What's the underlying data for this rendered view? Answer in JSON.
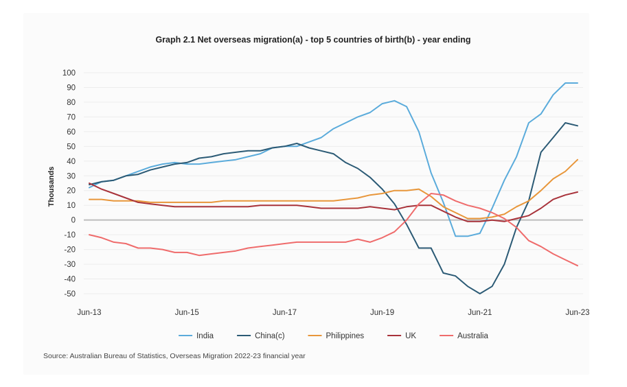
{
  "chart_data": {
    "type": "line",
    "title": "Graph 2.1 Net overseas migration(a) - top 5 countries of birth(b) - year ending",
    "ylabel": "Thousands",
    "xlabel": "",
    "ylim": [
      -50,
      100
    ],
    "yticks": [
      -50,
      -40,
      -30,
      -20,
      -10,
      0,
      10,
      20,
      30,
      40,
      50,
      60,
      70,
      80,
      90,
      100
    ],
    "x": [
      "Jun-13",
      "Sep-13",
      "Dec-13",
      "Mar-14",
      "Jun-14",
      "Sep-14",
      "Dec-14",
      "Mar-15",
      "Jun-15",
      "Sep-15",
      "Dec-15",
      "Mar-16",
      "Jun-16",
      "Sep-16",
      "Dec-16",
      "Mar-17",
      "Jun-17",
      "Sep-17",
      "Dec-17",
      "Mar-18",
      "Jun-18",
      "Sep-18",
      "Dec-18",
      "Mar-19",
      "Jun-19",
      "Sep-19",
      "Dec-19",
      "Mar-20",
      "Jun-20",
      "Sep-20",
      "Dec-20",
      "Mar-21",
      "Jun-21",
      "Sep-21",
      "Dec-21",
      "Mar-22",
      "Jun-22",
      "Sep-22",
      "Dec-22",
      "Mar-23",
      "Jun-23"
    ],
    "xtick_labels": [
      "Jun-13",
      "Jun-15",
      "Jun-17",
      "Jun-19",
      "Jun-21",
      "Jun-23"
    ],
    "grid": true,
    "legend_position": "bottom",
    "series": [
      {
        "name": "India",
        "color": "#5aabdb",
        "values": [
          22,
          26,
          27,
          30,
          33,
          36,
          38,
          39,
          38,
          38,
          39,
          40,
          41,
          43,
          45,
          49,
          50,
          50,
          53,
          56,
          62,
          66,
          70,
          73,
          79,
          81,
          77,
          60,
          32,
          12,
          -11,
          -11,
          -9,
          8,
          27,
          43,
          66,
          72,
          85,
          93,
          93
        ]
      },
      {
        "name": "China(c)",
        "color": "#2b5a75",
        "values": [
          24,
          26,
          27,
          30,
          31,
          34,
          36,
          38,
          39,
          42,
          43,
          45,
          46,
          47,
          47,
          49,
          50,
          52,
          49,
          47,
          45,
          39,
          35,
          29,
          21,
          11,
          -3,
          -19,
          -19,
          -36,
          -38,
          -45,
          -50,
          -45,
          -30,
          -5,
          13,
          46,
          56,
          66,
          64
        ]
      },
      {
        "name": "Philippines",
        "color": "#e8963a",
        "values": [
          14,
          14,
          13,
          13,
          13,
          12,
          12,
          12,
          12,
          12,
          12,
          13,
          13,
          13,
          13,
          13,
          13,
          13,
          13,
          13,
          13,
          14,
          15,
          17,
          18,
          20,
          20,
          21,
          16,
          9,
          5,
          1,
          1,
          2,
          4,
          9,
          13,
          20,
          28,
          33,
          41
        ]
      },
      {
        "name": "UK",
        "color": "#a8323a",
        "values": [
          25,
          21,
          18,
          15,
          12,
          11,
          10,
          9,
          9,
          9,
          9,
          9,
          9,
          9,
          10,
          10,
          10,
          10,
          9,
          8,
          8,
          8,
          8,
          9,
          8,
          7,
          9,
          10,
          10,
          6,
          2,
          -1,
          -1,
          0,
          -1,
          1,
          3,
          8,
          14,
          17,
          19
        ]
      },
      {
        "name": "Australia",
        "color": "#ef6b6b",
        "values": [
          -10,
          -12,
          -15,
          -16,
          -19,
          -19,
          -20,
          -22,
          -22,
          -24,
          -23,
          -22,
          -21,
          -19,
          -18,
          -17,
          -16,
          -15,
          -15,
          -15,
          -15,
          -15,
          -13,
          -15,
          -12,
          -8,
          0,
          11,
          18,
          17,
          13,
          10,
          8,
          5,
          1,
          -5,
          -14,
          -18,
          -23,
          -27,
          -31
        ]
      }
    ]
  },
  "source": "Source: Australian Bureau of Statistics, Overseas Migration 2022-23 financial year"
}
